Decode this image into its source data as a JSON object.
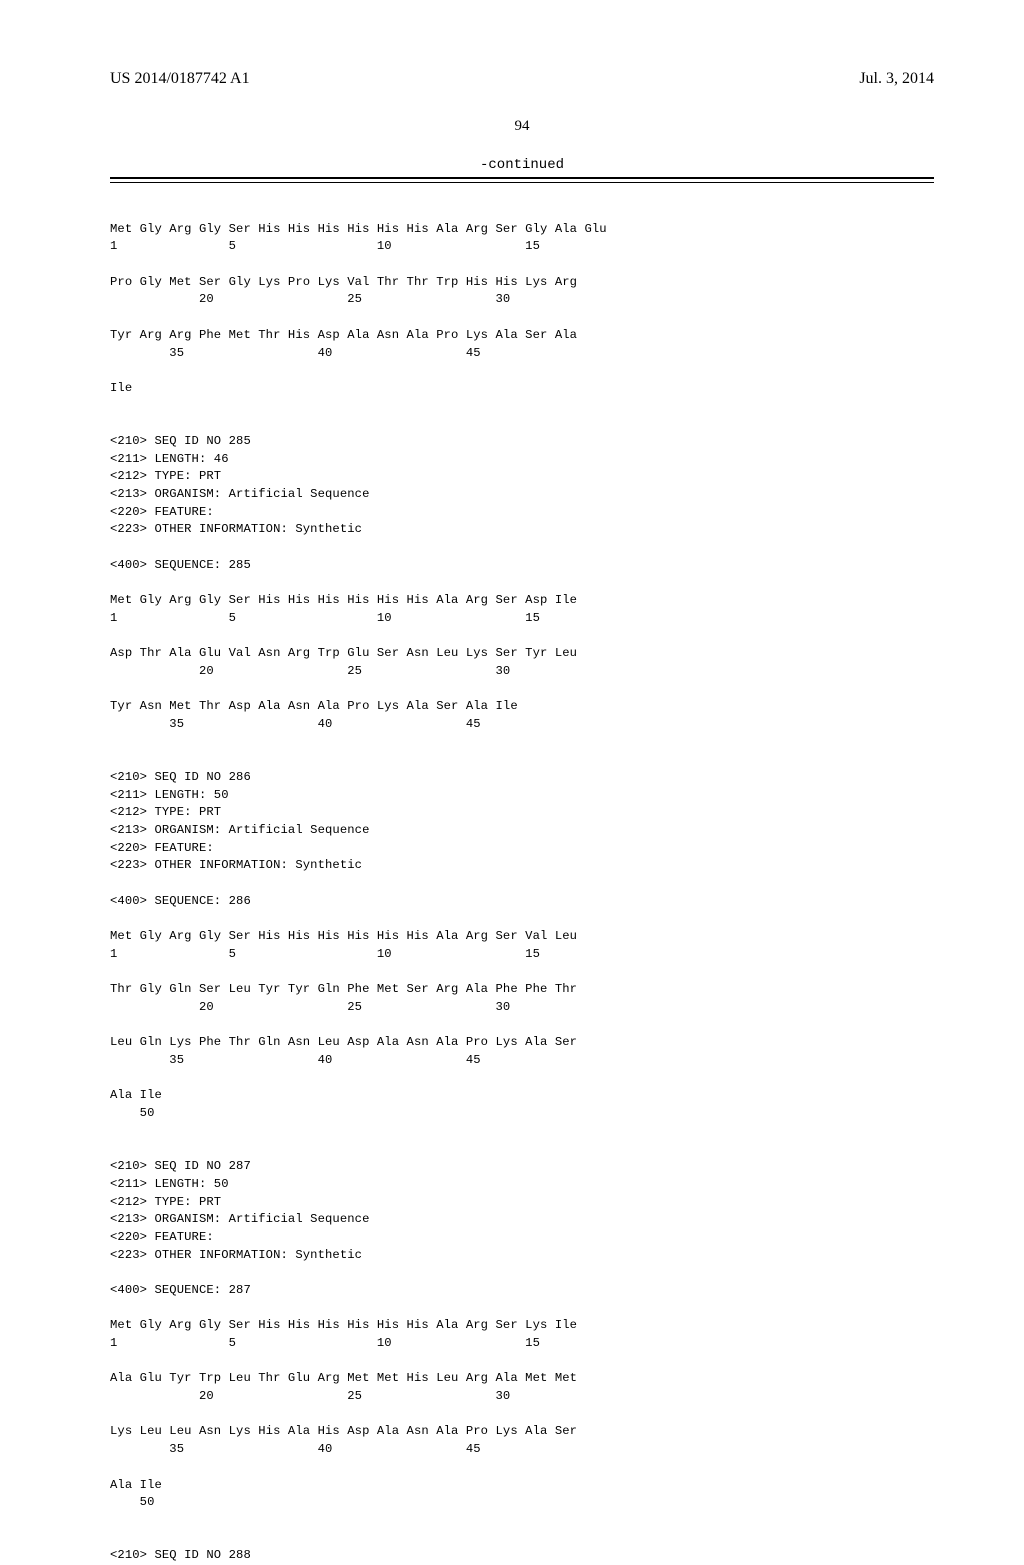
{
  "header": {
    "publication_number": "US 2014/0187742 A1",
    "date": "Jul. 3, 2014"
  },
  "page_number": "94",
  "continued_label": "-continued",
  "sequences": {
    "seq284_tail": {
      "row1": {
        "residues": "Met Gly Arg Gly Ser His His His His His His Ala Arg Ser Gly Ala Glu",
        "nums": "1               5                   10                  15"
      },
      "row2": {
        "residues": "Pro Gly Met Ser Gly Lys Pro Lys Val Thr Thr Trp His His Lys Arg",
        "nums": "            20                  25                  30"
      },
      "row3": {
        "residues": "Tyr Arg Arg Phe Met Thr His Asp Ala Asn Ala Pro Lys Ala Ser Ala",
        "nums": "        35                  40                  45"
      },
      "row4": {
        "residues": "Ile"
      }
    },
    "seq285_meta": {
      "l210": "<210> SEQ ID NO 285",
      "l211": "<211> LENGTH: 46",
      "l212": "<212> TYPE: PRT",
      "l213": "<213> ORGANISM: Artificial Sequence",
      "l220": "<220> FEATURE:",
      "l223": "<223> OTHER INFORMATION: Synthetic",
      "l400": "<400> SEQUENCE: 285"
    },
    "seq285": {
      "row1": {
        "residues": "Met Gly Arg Gly Ser His His His His His His Ala Arg Ser Asp Ile",
        "nums": "1               5                   10                  15"
      },
      "row2": {
        "residues": "Asp Thr Ala Glu Val Asn Arg Trp Glu Ser Asn Leu Lys Ser Tyr Leu",
        "nums": "            20                  25                  30"
      },
      "row3": {
        "residues": "Tyr Asn Met Thr Asp Ala Asn Ala Pro Lys Ala Ser Ala Ile",
        "nums": "        35                  40                  45"
      }
    },
    "seq286_meta": {
      "l210": "<210> SEQ ID NO 286",
      "l211": "<211> LENGTH: 50",
      "l212": "<212> TYPE: PRT",
      "l213": "<213> ORGANISM: Artificial Sequence",
      "l220": "<220> FEATURE:",
      "l223": "<223> OTHER INFORMATION: Synthetic",
      "l400": "<400> SEQUENCE: 286"
    },
    "seq286": {
      "row1": {
        "residues": "Met Gly Arg Gly Ser His His His His His His Ala Arg Ser Val Leu",
        "nums": "1               5                   10                  15"
      },
      "row2": {
        "residues": "Thr Gly Gln Ser Leu Tyr Tyr Gln Phe Met Ser Arg Ala Phe Phe Thr",
        "nums": "            20                  25                  30"
      },
      "row3": {
        "residues": "Leu Gln Lys Phe Thr Gln Asn Leu Asp Ala Asn Ala Pro Lys Ala Ser",
        "nums": "        35                  40                  45"
      },
      "row4": {
        "residues": "Ala Ile",
        "nums": "    50"
      }
    },
    "seq287_meta": {
      "l210": "<210> SEQ ID NO 287",
      "l211": "<211> LENGTH: 50",
      "l212": "<212> TYPE: PRT",
      "l213": "<213> ORGANISM: Artificial Sequence",
      "l220": "<220> FEATURE:",
      "l223": "<223> OTHER INFORMATION: Synthetic",
      "l400": "<400> SEQUENCE: 287"
    },
    "seq287": {
      "row1": {
        "residues": "Met Gly Arg Gly Ser His His His His His His Ala Arg Ser Lys Ile",
        "nums": "1               5                   10                  15"
      },
      "row2": {
        "residues": "Ala Glu Tyr Trp Leu Thr Glu Arg Met Met His Leu Arg Ala Met Met",
        "nums": "            20                  25                  30"
      },
      "row3": {
        "residues": "Lys Leu Leu Asn Lys His Ala His Asp Ala Asn Ala Pro Lys Ala Ser",
        "nums": "        35                  40                  45"
      },
      "row4": {
        "residues": "Ala Ile",
        "nums": "    50"
      }
    },
    "seq288_meta": {
      "l210": "<210> SEQ ID NO 288"
    }
  }
}
